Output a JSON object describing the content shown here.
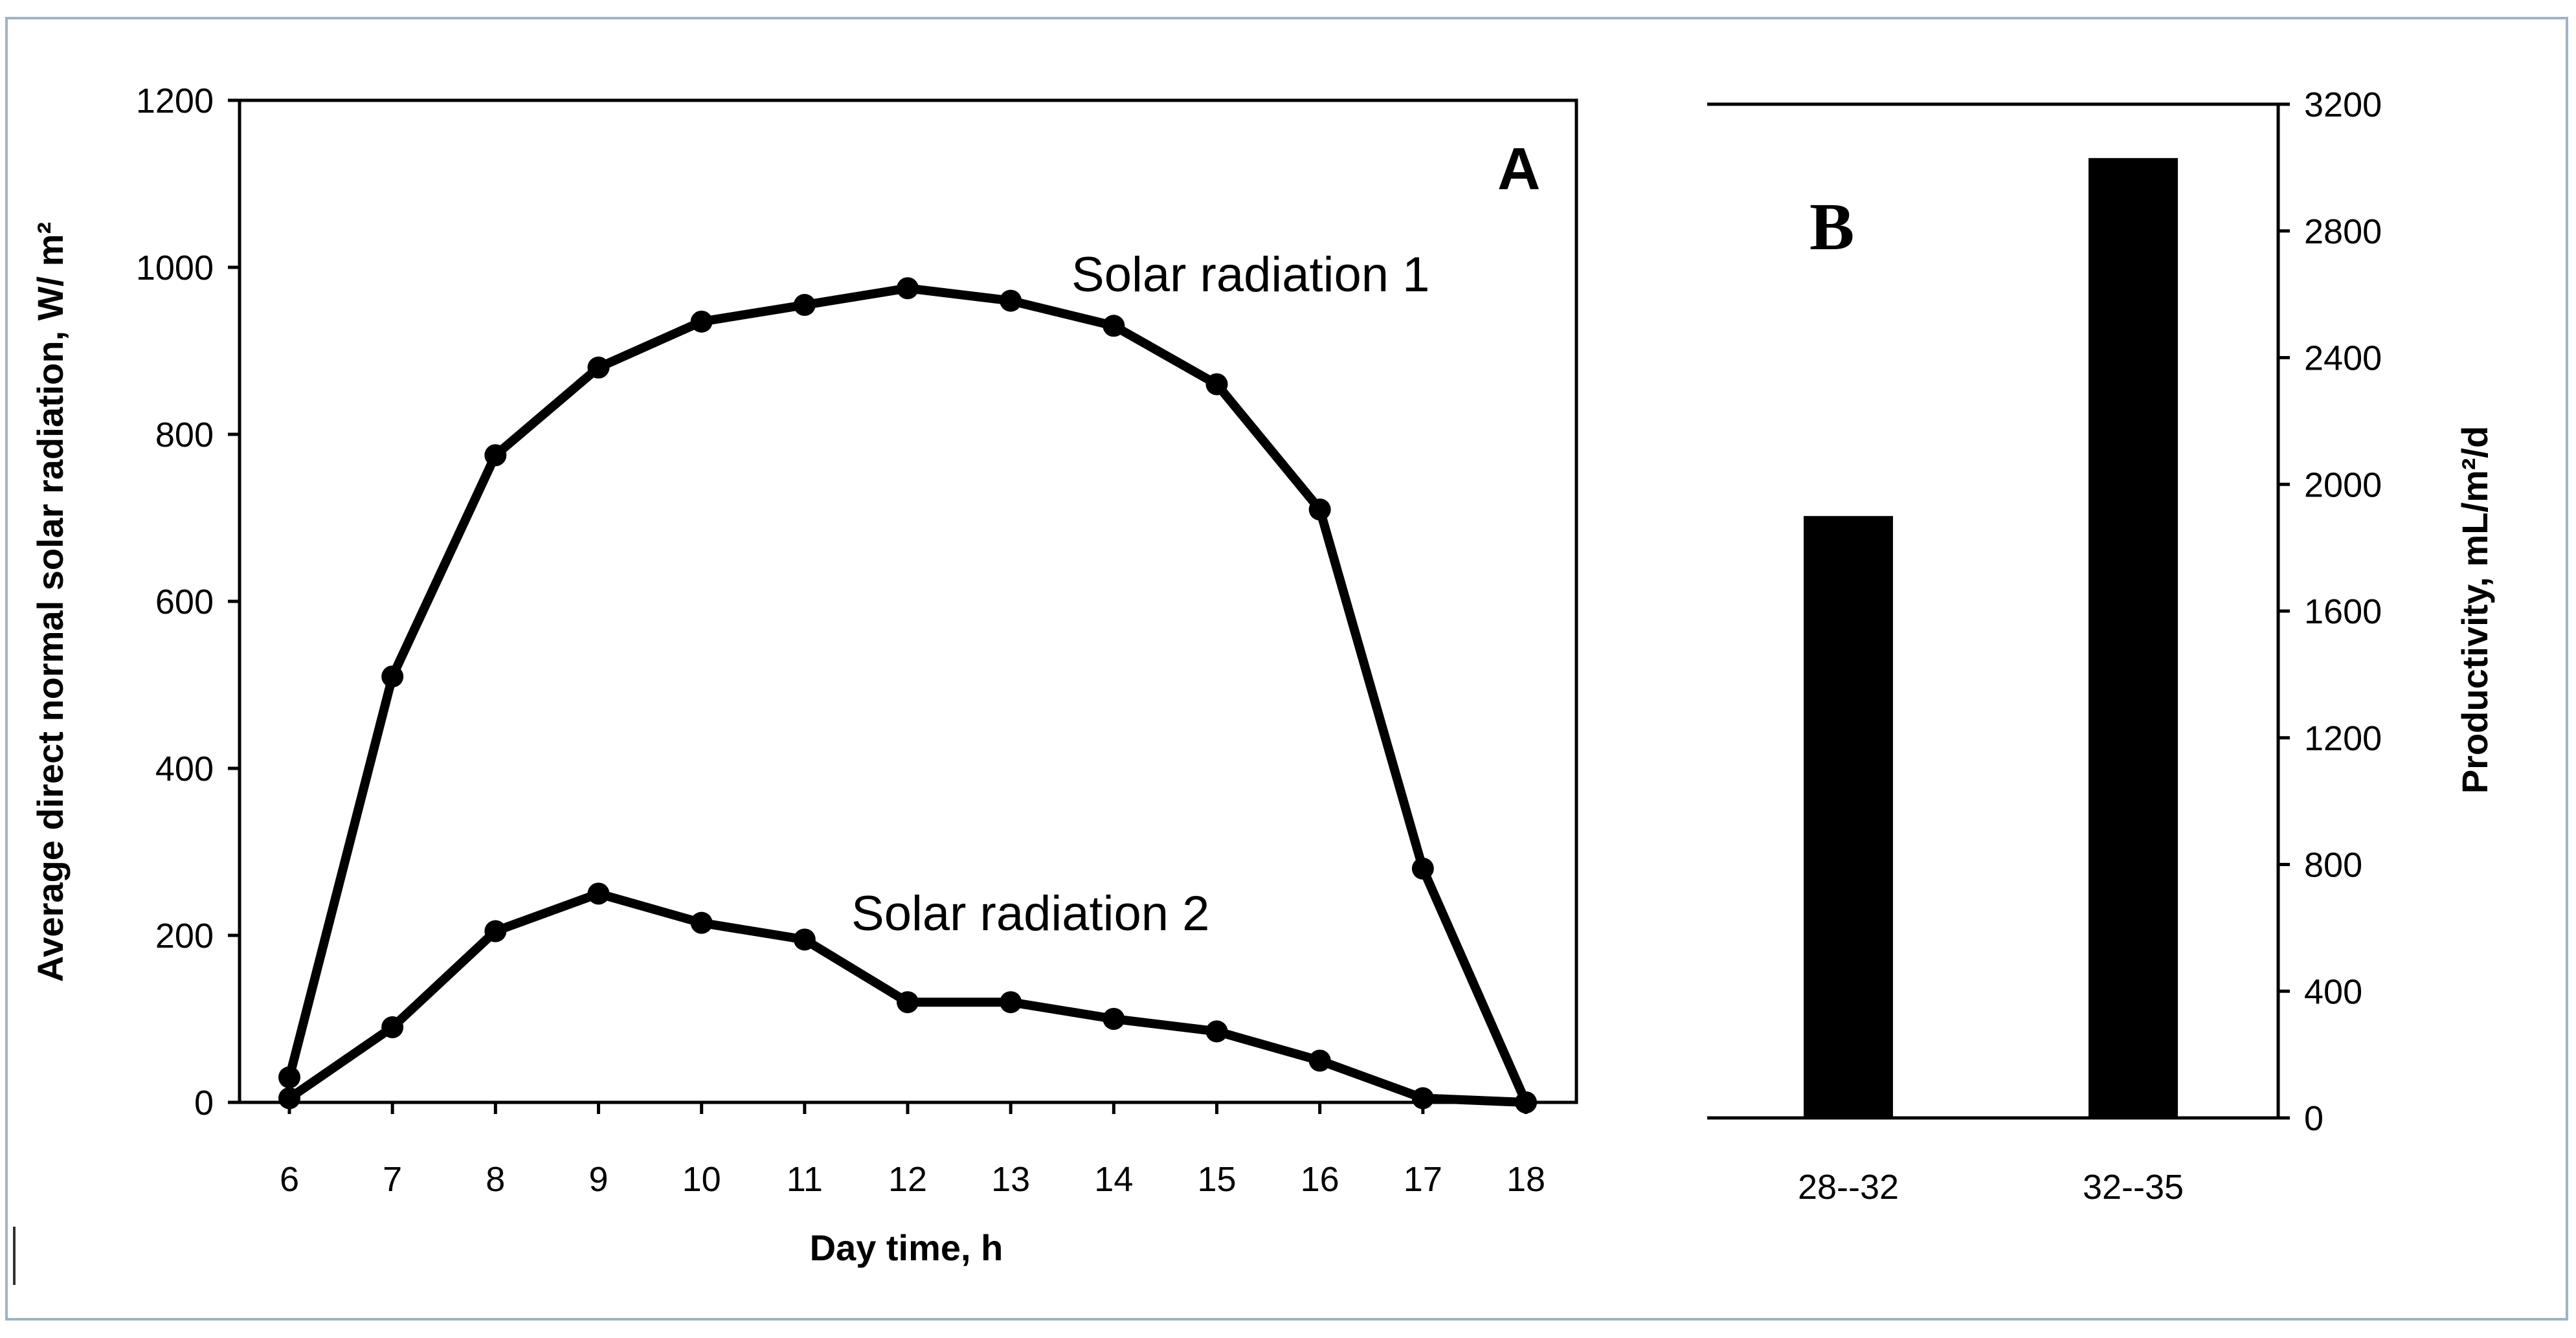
{
  "chart_data": [
    {
      "panel_label": "A",
      "type": "line",
      "xlabel": "Day time, h",
      "ylabel": "Average direct normal solar radiation, W/ m²",
      "xlim": [
        6,
        18
      ],
      "ylim": [
        0,
        1200
      ],
      "x_ticks": [
        "6",
        "7",
        "8",
        "9",
        "10",
        "11",
        "12",
        "13",
        "14",
        "15",
        "16",
        "17",
        "18"
      ],
      "y_ticks": [
        "0",
        "200",
        "400",
        "600",
        "800",
        "1000",
        "1200"
      ],
      "grid": false,
      "series": [
        {
          "name": "Solar radiation 1",
          "x": [
            6,
            7,
            8,
            9,
            10,
            11,
            12,
            13,
            14,
            15,
            16,
            17,
            18
          ],
          "values": [
            30,
            510,
            775,
            880,
            935,
            955,
            975,
            960,
            930,
            860,
            710,
            280,
            0
          ]
        },
        {
          "name": "Solar radiation 2",
          "x": [
            6,
            7,
            8,
            9,
            10,
            11,
            12,
            13,
            14,
            15,
            16,
            17,
            18
          ],
          "values": [
            5,
            90,
            205,
            250,
            215,
            195,
            120,
            120,
            100,
            85,
            50,
            5,
            0
          ]
        }
      ]
    },
    {
      "panel_label": "B",
      "type": "bar",
      "categories": [
        "28--32",
        "32--35"
      ],
      "values": [
        1900,
        3030
      ],
      "ylabel": "Productivity, mL/m²/d",
      "ylim": [
        0,
        3200
      ],
      "y_ticks": [
        "0",
        "400",
        "800",
        "1200",
        "1600",
        "2000",
        "2400",
        "2800",
        "3200"
      ],
      "grid": false
    }
  ]
}
